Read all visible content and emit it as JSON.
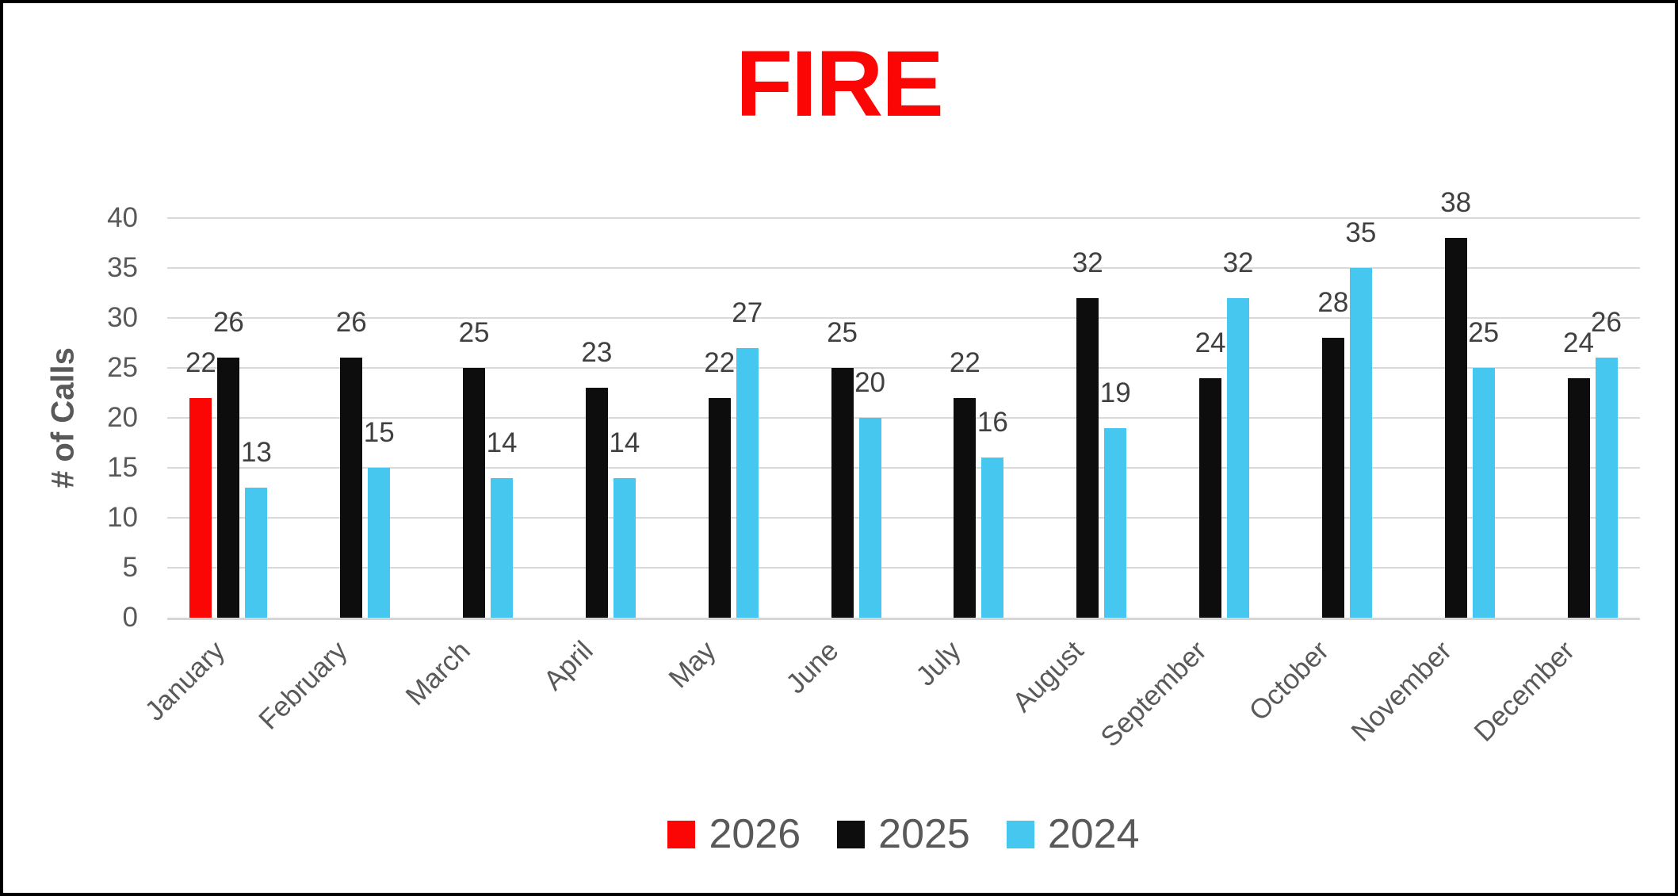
{
  "title": {
    "text": "FIRE",
    "color": "#fb0505"
  },
  "colors": {
    "axis_text": "#595959",
    "data_label": "#404040",
    "gridline": "#d9d9d9",
    "baseline": "#d6d6d6"
  },
  "chart_data": {
    "type": "bar",
    "title": "FIRE",
    "xlabel": "",
    "ylabel": "# of Calls",
    "ylim": [
      0,
      40
    ],
    "ytick_step": 5,
    "grid": true,
    "legend_position": "bottom",
    "categories": [
      "January",
      "February",
      "March",
      "April",
      "May",
      "June",
      "July",
      "August",
      "September",
      "October",
      "November",
      "December"
    ],
    "series": [
      {
        "name": "2026",
        "color": "#fb0505",
        "values": [
          22,
          null,
          null,
          null,
          null,
          null,
          null,
          null,
          null,
          null,
          null,
          null
        ]
      },
      {
        "name": "2025",
        "color": "#0d0d0d",
        "values": [
          26,
          26,
          25,
          23,
          22,
          25,
          22,
          32,
          24,
          28,
          38,
          24
        ]
      },
      {
        "name": "2024",
        "color": "#45c7f0",
        "values": [
          13,
          15,
          14,
          14,
          27,
          20,
          16,
          19,
          32,
          35,
          25,
          26
        ]
      }
    ]
  }
}
